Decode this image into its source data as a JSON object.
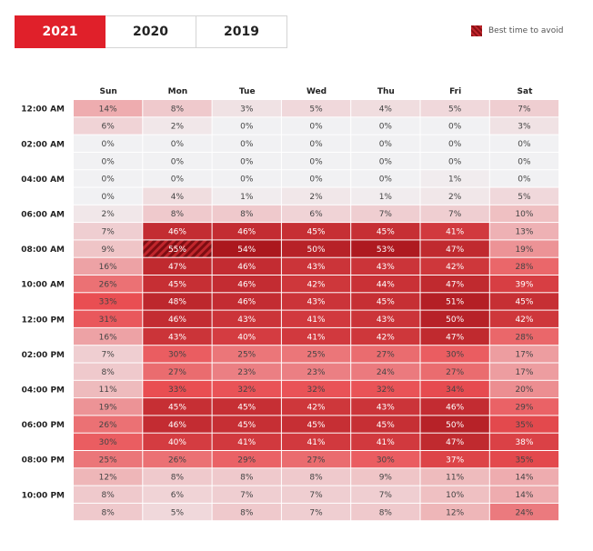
{
  "tabs": [
    {
      "label": "2021",
      "active": true
    },
    {
      "label": "2020",
      "active": false
    },
    {
      "label": "2019",
      "active": false
    }
  ],
  "legend": {
    "label": "Best time to avoid",
    "swatch_color": "#8a0f14"
  },
  "colors": {
    "accent": "#e0202a",
    "low": "#f1f1f3",
    "high": "#a8151b"
  },
  "chart_data": {
    "type": "heatmap",
    "columns": [
      "Sun",
      "Mon",
      "Tue",
      "Wed",
      "Thu",
      "Fri",
      "Sat"
    ],
    "row_labels": [
      "12:00 AM",
      "",
      "02:00 AM",
      "",
      "04:00 AM",
      "",
      "06:00 AM",
      "",
      "08:00 AM",
      "",
      "10:00 AM",
      "",
      "12:00 PM",
      "",
      "02:00 PM",
      "",
      "04:00 PM",
      "",
      "06:00 PM",
      "",
      "08:00 PM",
      "",
      "10:00 PM",
      ""
    ],
    "values": [
      [
        14,
        8,
        3,
        5,
        4,
        5,
        7
      ],
      [
        6,
        2,
        0,
        0,
        0,
        0,
        3
      ],
      [
        0,
        0,
        0,
        0,
        0,
        0,
        0
      ],
      [
        0,
        0,
        0,
        0,
        0,
        0,
        0
      ],
      [
        0,
        0,
        0,
        0,
        0,
        1,
        0
      ],
      [
        0,
        4,
        1,
        2,
        1,
        2,
        5
      ],
      [
        2,
        8,
        8,
        6,
        7,
        7,
        10
      ],
      [
        7,
        46,
        46,
        45,
        45,
        41,
        13
      ],
      [
        9,
        55,
        54,
        50,
        53,
        47,
        19
      ],
      [
        16,
        47,
        46,
        43,
        43,
        42,
        28
      ],
      [
        26,
        45,
        46,
        42,
        44,
        47,
        39
      ],
      [
        33,
        48,
        46,
        43,
        45,
        51,
        45
      ],
      [
        31,
        46,
        43,
        41,
        43,
        50,
        42
      ],
      [
        16,
        43,
        40,
        41,
        42,
        47,
        28
      ],
      [
        7,
        30,
        25,
        25,
        27,
        30,
        17
      ],
      [
        8,
        27,
        23,
        23,
        24,
        27,
        17
      ],
      [
        11,
        33,
        32,
        32,
        32,
        34,
        20
      ],
      [
        19,
        45,
        45,
        42,
        43,
        46,
        29
      ],
      [
        26,
        46,
        45,
        45,
        45,
        50,
        35
      ],
      [
        30,
        40,
        41,
        41,
        41,
        47,
        38
      ],
      [
        25,
        26,
        29,
        27,
        30,
        37,
        35
      ],
      [
        12,
        8,
        8,
        8,
        9,
        11,
        14
      ],
      [
        8,
        6,
        7,
        7,
        7,
        10,
        14
      ],
      [
        8,
        5,
        8,
        7,
        8,
        12,
        24
      ]
    ],
    "value_suffix": "%",
    "highlight": {
      "row": 8,
      "col": 1
    }
  }
}
